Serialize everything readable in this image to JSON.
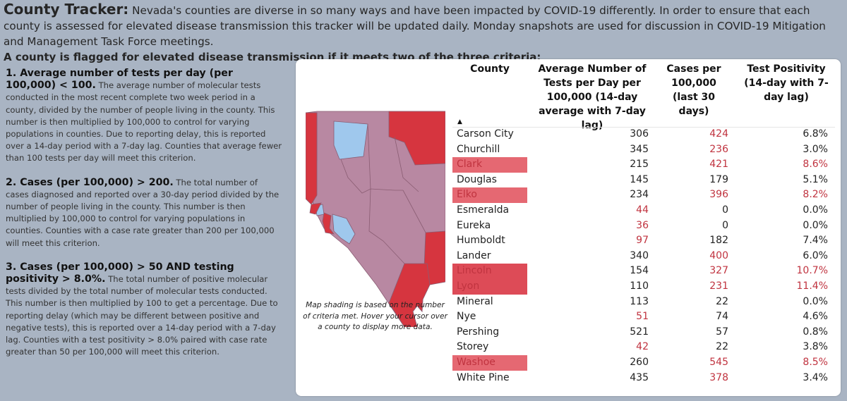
{
  "header": {
    "title": "County Tracker:",
    "intro": "Nevada's counties are diverse in so many ways and have been impacted by COVID-19 differently. In order to ensure that each county is assessed for elevated disease transmission this tracker will be updated daily. Monday snapshots are used for discussion in COVID-19 Mitigation and Management Task Force meetings.",
    "criteria_line": "A county is flagged for elevated disease transmission if it meets two of the three criteria:"
  },
  "criteria": [
    {
      "heading": "1. Average number of tests per day (per 100,000) < 100.",
      "body": "The average number of molecular tests conducted in the most recent complete two week period in a county, divided by the number of people living in the county. This number is then multiplied by 100,000 to control for varying populations in counties. Due to reporting delay, this is reported over a 14-day period with a 7-day lag. Counties that average fewer than 100 tests per day will meet this criterion."
    },
    {
      "heading": "2. Cases (per 100,000) > 200.",
      "body": "The total number of cases diagnosed and reported over a 30-day period divided by the number of people living in the county. This number is then multiplied by 100,000 to control for varying populations in counties. Counties with a case rate greater than 200 per 100,000 will meet this criterion."
    },
    {
      "heading": "3. Cases (per 100,000) > 50 AND testing positivity > 8.0%.",
      "body": "The total number of positive molecular tests divided by the total number of molecular tests conducted. This number is then multiplied by 100 to get a percentage. Due to reporting delay (which may be different between positive and negative tests), this is reported over a 14-day period with a 7-day lag. Counties with a test positivity > 8.0% paired with case rate greater than 50 per 100,000 will meet this criterion."
    }
  ],
  "map": {
    "note": "Map shading is based on the number of criteria met. Hover your cursor over a county to display more data.",
    "colors": {
      "high": "#d6353f",
      "medium": "#b888a2",
      "low": "#9fc8ed",
      "border": "#8a5d73"
    }
  },
  "table": {
    "headers": {
      "county": "County",
      "tests": "Average Number of Tests per Day per 100,000 (14-day average with 7-day lag)",
      "cases": "Cases per 100,000 (last 30 days)",
      "positivity": "Test Positivity (14-day with 7-day lag)"
    },
    "sort_indicator": "▲",
    "rows": [
      {
        "county": "Carson City",
        "tests": "306",
        "cases": "424",
        "positivity": "6.8%",
        "flag": ""
      },
      {
        "county": "Churchill",
        "tests": "345",
        "cases": "236",
        "positivity": "3.0%",
        "flag": ""
      },
      {
        "county": "Clark",
        "tests": "215",
        "cases": "421",
        "positivity": "8.6%",
        "flag": "flag"
      },
      {
        "county": "Douglas",
        "tests": "145",
        "cases": "179",
        "positivity": "5.1%",
        "flag": ""
      },
      {
        "county": "Elko",
        "tests": "234",
        "cases": "396",
        "positivity": "8.2%",
        "flag": "flag"
      },
      {
        "county": "Esmeralda",
        "tests": "44",
        "cases": "0",
        "positivity": "0.0%",
        "flag": ""
      },
      {
        "county": "Eureka",
        "tests": "36",
        "cases": "0",
        "positivity": "0.0%",
        "flag": ""
      },
      {
        "county": "Humboldt",
        "tests": "97",
        "cases": "182",
        "positivity": "7.4%",
        "flag": ""
      },
      {
        "county": "Lander",
        "tests": "340",
        "cases": "400",
        "positivity": "6.0%",
        "flag": ""
      },
      {
        "county": "Lincoln",
        "tests": "154",
        "cases": "327",
        "positivity": "10.7%",
        "flag": "flag-dark"
      },
      {
        "county": "Lyon",
        "tests": "110",
        "cases": "231",
        "positivity": "11.4%",
        "flag": "flag-dark"
      },
      {
        "county": "Mineral",
        "tests": "113",
        "cases": "22",
        "positivity": "0.0%",
        "flag": ""
      },
      {
        "county": "Nye",
        "tests": "51",
        "cases": "74",
        "positivity": "4.6%",
        "flag": ""
      },
      {
        "county": "Pershing",
        "tests": "521",
        "cases": "57",
        "positivity": "0.8%",
        "flag": ""
      },
      {
        "county": "Storey",
        "tests": "42",
        "cases": "22",
        "positivity": "3.8%",
        "flag": ""
      },
      {
        "county": "Washoe",
        "tests": "260",
        "cases": "545",
        "positivity": "8.5%",
        "flag": "flag"
      },
      {
        "county": "White Pine",
        "tests": "435",
        "cases": "378",
        "positivity": "3.4%",
        "flag": ""
      }
    ]
  }
}
